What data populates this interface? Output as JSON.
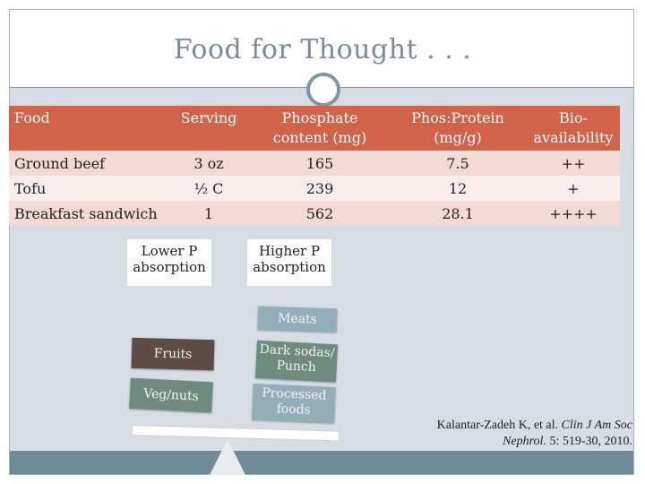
{
  "slide": {
    "title": "Food for Thought . . ."
  },
  "table": {
    "headers": [
      "Food",
      "Serving",
      "Phosphate content (mg)",
      "Phos:Protein (mg/g)",
      "Bio-availability"
    ],
    "rows": [
      [
        "Ground beef",
        "3 oz",
        "165",
        "7.5",
        "++"
      ],
      [
        "Tofu",
        "½ C",
        "239",
        "12",
        "+"
      ],
      [
        "Breakfast sandwich",
        "1",
        "562",
        "28.1",
        "++++"
      ]
    ]
  },
  "scale": {
    "lower_label": "Lower P absorption",
    "higher_label": "Higher P absorption",
    "left_items": [
      "Fruits",
      "Veg/nuts"
    ],
    "right_items": [
      "Meats",
      "Dark sodas/ Punch",
      "Processed foods"
    ]
  },
  "citation": {
    "authors": "Kalantar-Zadeh K, et al.",
    "journal": "Clin J Am Soc Nephrol.",
    "details": "5: 519-30, 2010."
  },
  "colors": {
    "header_bg": "#d1634a",
    "row_pink": "#f3dad5",
    "row_light": "#f9eeeb",
    "frame_bg": "#d6dde4",
    "accent": "#7f96a6"
  }
}
